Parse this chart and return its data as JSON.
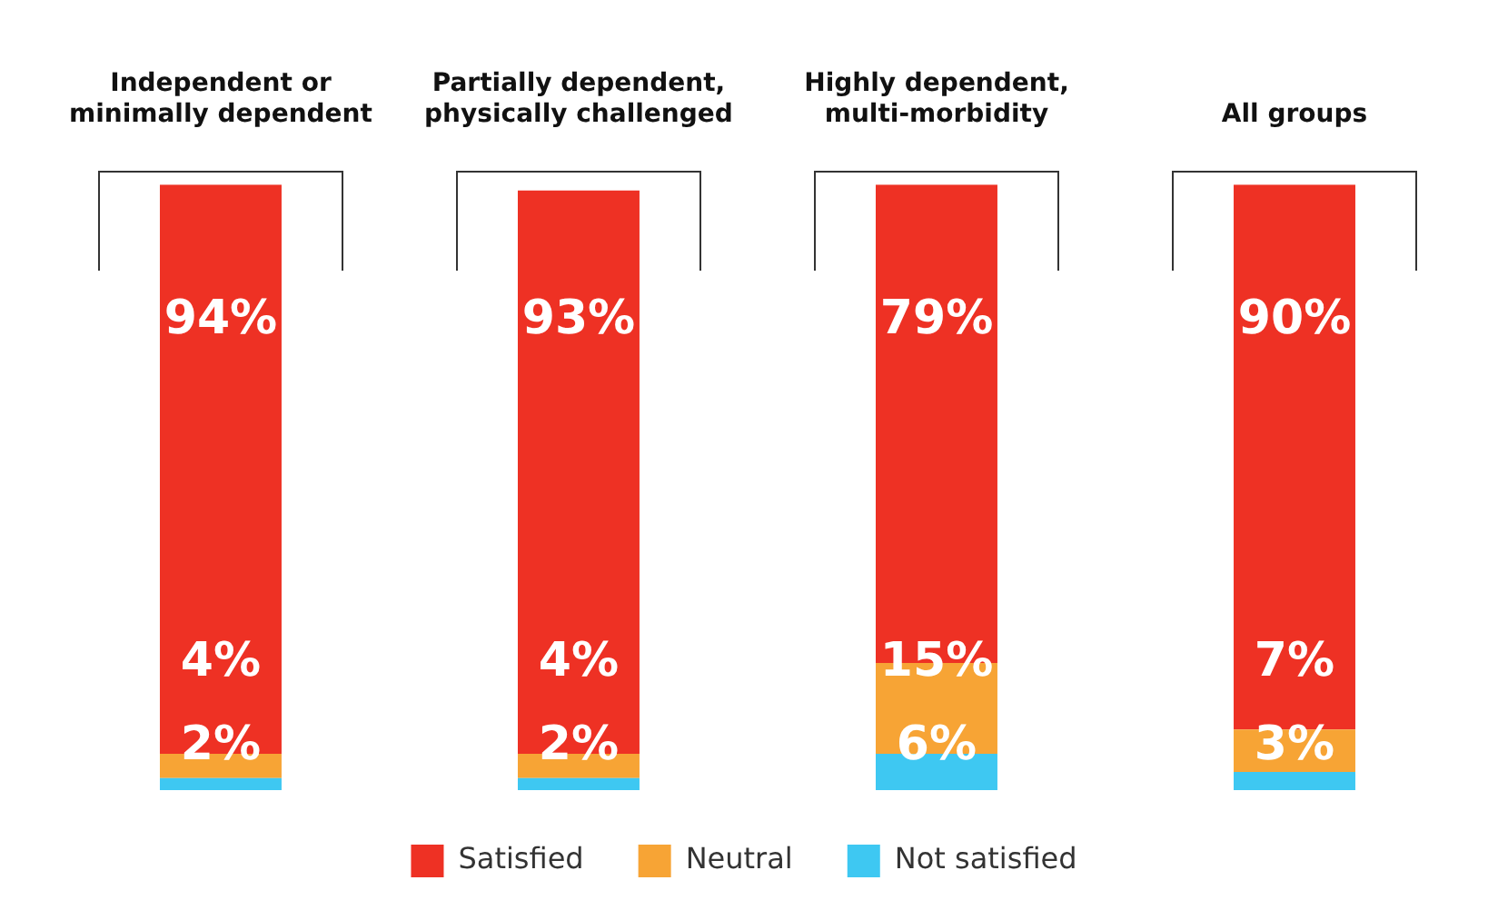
{
  "chart_data": {
    "type": "bar",
    "stacked": true,
    "legend": "bottom",
    "grid": false,
    "categories": [
      "Independent or minimally dependent",
      "Partially dependent, physically challenged",
      "Highly dependent, multi-morbidity",
      "All groups"
    ],
    "series": [
      {
        "name": "Not satisfied",
        "color": "#3ec8f2",
        "values": [
          2,
          2,
          6,
          3
        ],
        "value_labels": [
          "2%",
          "2%",
          "6%",
          "3%"
        ]
      },
      {
        "name": "Neutral",
        "color": "#f7a435",
        "values": [
          4,
          4,
          15,
          7
        ],
        "value_labels": [
          "4%",
          "4%",
          "15%",
          "7%"
        ]
      },
      {
        "name": "Satisfied",
        "color": "#ee3124",
        "values": [
          94,
          93,
          79,
          90
        ],
        "value_labels": [
          "94%",
          "93%",
          "79%",
          "90%"
        ]
      }
    ]
  }
}
